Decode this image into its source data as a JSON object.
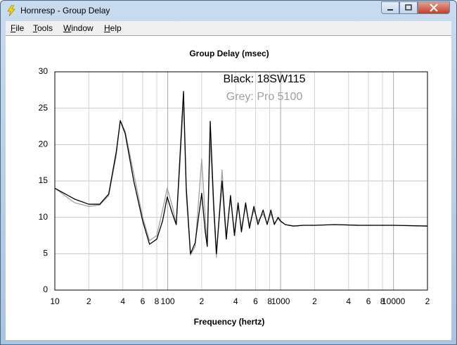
{
  "window": {
    "title": "Hornresp - Group Delay",
    "menu": [
      "File",
      "Tools",
      "Window",
      "Help"
    ]
  },
  "chart_data": {
    "type": "line",
    "title": "Group Delay (msec)",
    "x_label": "Frequency (hertz)",
    "log_x": true,
    "grid": true,
    "xlim": [
      10,
      20000
    ],
    "xticks": [
      10,
      {
        "value": 20,
        "label": "2"
      },
      {
        "value": 40,
        "label": "4"
      },
      {
        "value": 60,
        "label": "6"
      },
      {
        "value": 80,
        "label": "8"
      },
      100,
      {
        "value": 200,
        "label": "2"
      },
      {
        "value": 400,
        "label": "4"
      },
      {
        "value": 600,
        "label": "6"
      },
      {
        "value": 800,
        "label": "8"
      },
      1000,
      {
        "value": 2000,
        "label": "2"
      },
      {
        "value": 4000,
        "label": "4"
      },
      {
        "value": 6000,
        "label": "6"
      },
      {
        "value": 8000,
        "label": "8"
      },
      10000,
      {
        "value": 20000,
        "label": "2"
      }
    ],
    "ylim": [
      0,
      30
    ],
    "yticks": [
      0,
      5,
      10,
      15,
      20,
      25,
      30
    ],
    "x": [
      10,
      15,
      20,
      25,
      30,
      35,
      38,
      42,
      50,
      60,
      69,
      80,
      90,
      99,
      110,
      119,
      128,
      138,
      146,
      159,
      175,
      200,
      215,
      224,
      238,
      255,
      270,
      303,
      330,
      360,
      390,
      420,
      450,
      490,
      530,
      580,
      630,
      700,
      760,
      820,
      880,
      950,
      1000,
      1100,
      1300,
      1600,
      2000,
      3000,
      5000,
      10000,
      20000
    ],
    "series": [
      {
        "name": "Grey: Pro 5100",
        "color": "#a0a0a0",
        "values": [
          14,
          12,
          11.5,
          11.7,
          13,
          18.5,
          23.3,
          21.8,
          16,
          10,
          6.8,
          7.5,
          11,
          14,
          11.5,
          9,
          17,
          26,
          13,
          4.8,
          6,
          18,
          10,
          6,
          21,
          11,
          4.5,
          16.5,
          7.5,
          12.5,
          8,
          11.5,
          8.5,
          11.5,
          9,
          11,
          9.5,
          10.5,
          9.2,
          10.5,
          9.2,
          9.8,
          9.4,
          9,
          8.8,
          8.9,
          8.9,
          9,
          8.9,
          8.9,
          8.8
        ]
      },
      {
        "name": "Black: 18SW115",
        "color": "#000000",
        "values": [
          14,
          12.5,
          11.8,
          11.8,
          13.2,
          19,
          23.3,
          21.5,
          15,
          9.5,
          6.3,
          7,
          9.5,
          12.8,
          10.5,
          9,
          18,
          27.3,
          14,
          5,
          6.5,
          13.3,
          8,
          6,
          23.2,
          12,
          5,
          15,
          7,
          13,
          7.5,
          12,
          8,
          12,
          8.5,
          11.5,
          9,
          11,
          9,
          11,
          9,
          10,
          9.5,
          9,
          8.8,
          8.9,
          8.9,
          9,
          8.9,
          8.9,
          8.8
        ]
      }
    ]
  }
}
